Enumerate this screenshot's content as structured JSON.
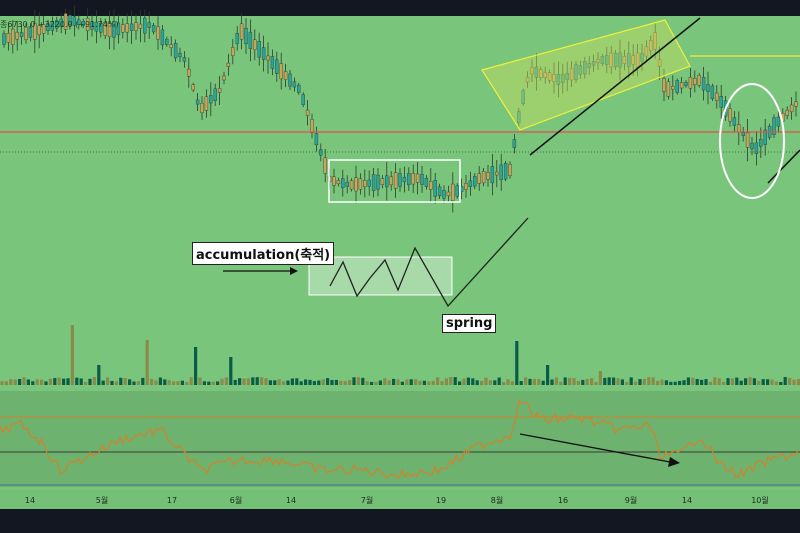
{
  "header": {
    "price_text": "종6730.0",
    "change_text": "+3220.0 (+91.74%)"
  },
  "colors": {
    "background": "#79c57b",
    "frame": "#131722",
    "up_candle": "#27a69a",
    "down_candle": "#c9a55a",
    "wick": "#2e3b2e",
    "horizontal_line": "#e0524a",
    "channel": "#e8e83a",
    "trend_line": "#111111",
    "rsi_line": "#d2822a",
    "annotation_box": "#ffffff",
    "volume_up": "#0b5c46",
    "volume_down": "#8a8a4a"
  },
  "annotations": {
    "accumulation_label": "accumulation(축적)",
    "spring_label": "spring"
  },
  "chart_data": {
    "type": "candlestick",
    "x_ticks": [
      "14",
      "5월",
      "17",
      "6월",
      "14",
      "7월",
      "19",
      "8월",
      "16",
      "9월",
      "14",
      "10월"
    ],
    "series": [
      {
        "name": "price",
        "type": "candlestick"
      },
      {
        "name": "volume",
        "type": "bar"
      },
      {
        "name": "oscillator",
        "type": "line"
      }
    ],
    "annotations": [
      "accumulation(축적)",
      "spring"
    ],
    "grid": false,
    "legend": "none"
  }
}
